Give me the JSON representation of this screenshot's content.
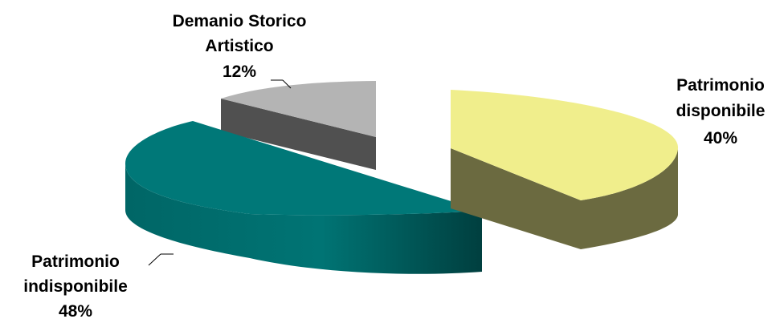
{
  "chart_data": {
    "type": "pie",
    "title": "",
    "style": "3d-exploded",
    "slices": [
      {
        "label_lines": [
          "Patrimonio",
          "disponibile"
        ],
        "percent_label": "40%",
        "value": 40,
        "color": "#F0EE8C",
        "side_color": "#6B6A40"
      },
      {
        "label_lines": [
          "Patrimonio",
          "indisponibile"
        ],
        "percent_label": "48%",
        "value": 48,
        "color": "#007878",
        "side_color": "#005A5A"
      },
      {
        "label_lines": [
          "Demanio Storico",
          "Artistico"
        ],
        "percent_label": "12%",
        "value": 12,
        "color": "#B4B4B4",
        "side_color": "#505050"
      }
    ],
    "legend": "none"
  }
}
